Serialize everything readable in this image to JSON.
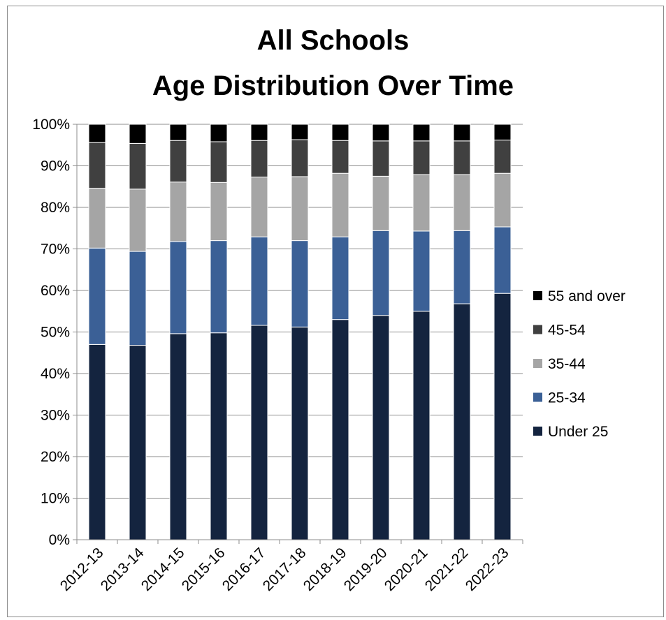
{
  "chart_data": {
    "type": "bar",
    "stacked": true,
    "title": [
      "All Schools",
      "Age Distribution Over Time"
    ],
    "categories": [
      "2012-13",
      "2013-14",
      "2014-15",
      "2015-16",
      "2016-17",
      "2017-18",
      "2018-19",
      "2019-20",
      "2020-21",
      "2021-22",
      "2022-23"
    ],
    "y_tick_labels": [
      "0%",
      "10%",
      "20%",
      "30%",
      "40%",
      "50%",
      "60%",
      "70%",
      "80%",
      "90%",
      "100%"
    ],
    "ylim": [
      0,
      100
    ],
    "grid": true,
    "legend_position": "right",
    "series": [
      {
        "name": "Under 25",
        "color": "#14243f",
        "values": [
          47.0,
          46.8,
          49.6,
          49.8,
          51.6,
          51.2,
          53.0,
          54.0,
          55.0,
          56.8,
          59.3
        ]
      },
      {
        "name": "25-34",
        "color": "#3b6096",
        "values": [
          23.2,
          22.6,
          22.2,
          22.2,
          21.3,
          20.8,
          19.9,
          20.4,
          19.3,
          17.6,
          16.0
        ]
      },
      {
        "name": "35-44",
        "color": "#a5a5a5",
        "values": [
          14.4,
          15.0,
          14.3,
          14.0,
          14.4,
          15.4,
          15.3,
          13.1,
          13.6,
          13.5,
          12.9
        ]
      },
      {
        "name": "45-54",
        "color": "#404040",
        "values": [
          11.0,
          11.0,
          10.0,
          9.8,
          8.8,
          8.9,
          7.9,
          8.5,
          8.1,
          8.1,
          8.0
        ]
      },
      {
        "name": "55 and over",
        "color": "#000000",
        "values": [
          4.4,
          4.6,
          3.9,
          4.2,
          3.9,
          3.7,
          3.9,
          4.0,
          4.0,
          4.0,
          3.8
        ]
      }
    ]
  }
}
